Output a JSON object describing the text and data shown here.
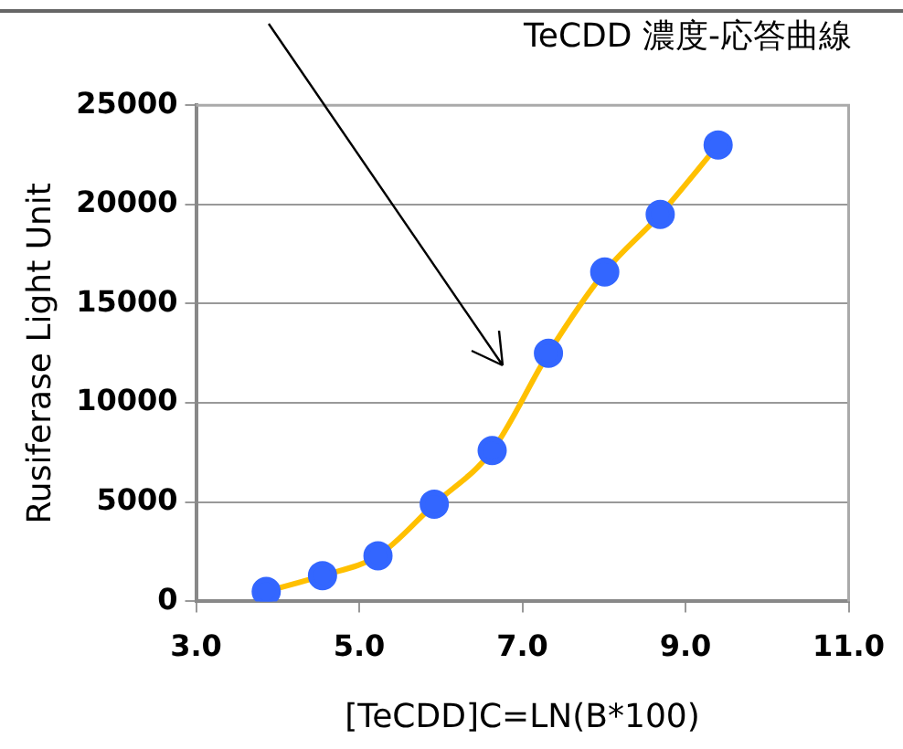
{
  "chart_data": {
    "type": "line",
    "title": "TeCDD 濃度-応答曲線",
    "xlabel": "[TeCDD]C=LN(B*100)",
    "ylabel": "Rusiferase Light Unit",
    "x": [
      3.86,
      4.55,
      5.23,
      5.92,
      6.63,
      7.32,
      8.01,
      8.69,
      9.4
    ],
    "series": [
      {
        "color": "#ffc000",
        "colors": [
          "#3366ff",
          "#3366ff",
          "#3366ff",
          "#3366ff",
          "#3366ff",
          "#3366ff",
          "#3366ff",
          "#3366ff",
          "#3366ff"
        ],
        "values": [
          500,
          1300,
          2300,
          4900,
          7600,
          12500,
          16600,
          19500,
          23000
        ]
      }
    ],
    "xlim": [
      3,
      11
    ],
    "xticks": [
      {
        "value": 3,
        "label": "3.0"
      },
      {
        "value": 5,
        "label": "5.0"
      },
      {
        "value": 7,
        "label": "7.0"
      },
      {
        "value": 9,
        "label": "9.0"
      },
      {
        "value": 11,
        "label": "11.0"
      }
    ],
    "ylim": [
      0,
      25000
    ],
    "yticks": [
      0,
      5000,
      10000,
      15000,
      20000,
      25000
    ],
    "grid": "y",
    "legend": false,
    "marker": "circle",
    "line_style": "solid"
  }
}
